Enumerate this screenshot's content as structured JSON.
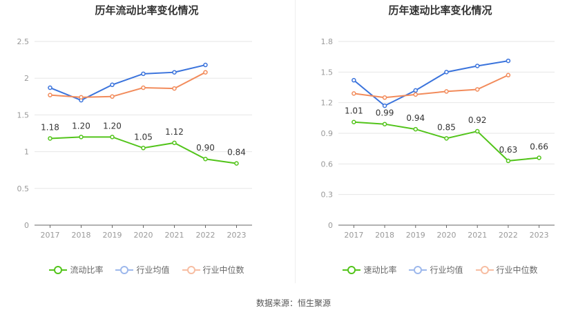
{
  "footer": {
    "source": "数据来源：恒生聚源"
  },
  "colors": {
    "primary": "#52c41a",
    "industry_avg": "#3a73dc",
    "industry_median": "#f28b5b",
    "grid": "#e6e6e6",
    "axis": "#999999"
  },
  "chart_data": [
    {
      "type": "line",
      "title": "历年流动比率变化情况",
      "x": [
        "2017",
        "2018",
        "2019",
        "2020",
        "2021",
        "2022",
        "2023"
      ],
      "ylim": [
        0,
        2.5
      ],
      "yticks": [
        "0",
        "0.5",
        "1",
        "1.5",
        "2",
        "2.5"
      ],
      "grid": true,
      "legend_position": "bottom",
      "series": [
        {
          "name": "流动比率",
          "values": [
            1.18,
            1.2,
            1.2,
            1.05,
            1.12,
            0.9,
            0.84
          ],
          "labels": [
            "1.18",
            "1.20",
            "1.20",
            "1.05",
            "1.12",
            "0.90",
            "0.84"
          ]
        },
        {
          "name": "行业均值",
          "values": [
            1.87,
            1.7,
            1.91,
            2.06,
            2.08,
            2.18,
            null
          ]
        },
        {
          "name": "行业中位数",
          "values": [
            1.77,
            1.74,
            1.75,
            1.87,
            1.86,
            2.08,
            null
          ]
        }
      ]
    },
    {
      "type": "line",
      "title": "历年速动比率变化情况",
      "x": [
        "2017",
        "2018",
        "2019",
        "2020",
        "2021",
        "2022",
        "2023"
      ],
      "ylim": [
        0,
        1.8
      ],
      "yticks": [
        "0",
        "0.3",
        "0.6",
        "0.9",
        "1.2",
        "1.5",
        "1.8"
      ],
      "grid": true,
      "legend_position": "bottom",
      "series": [
        {
          "name": "速动比率",
          "values": [
            1.01,
            0.99,
            0.94,
            0.85,
            0.92,
            0.63,
            0.66
          ],
          "labels": [
            "1.01",
            "0.99",
            "0.94",
            "0.85",
            "0.92",
            "0.63",
            "0.66"
          ]
        },
        {
          "name": "行业均值",
          "values": [
            1.42,
            1.17,
            1.32,
            1.5,
            1.56,
            1.61,
            null
          ]
        },
        {
          "name": "行业中位数",
          "values": [
            1.29,
            1.25,
            1.28,
            1.31,
            1.33,
            1.47,
            null
          ]
        }
      ]
    }
  ]
}
